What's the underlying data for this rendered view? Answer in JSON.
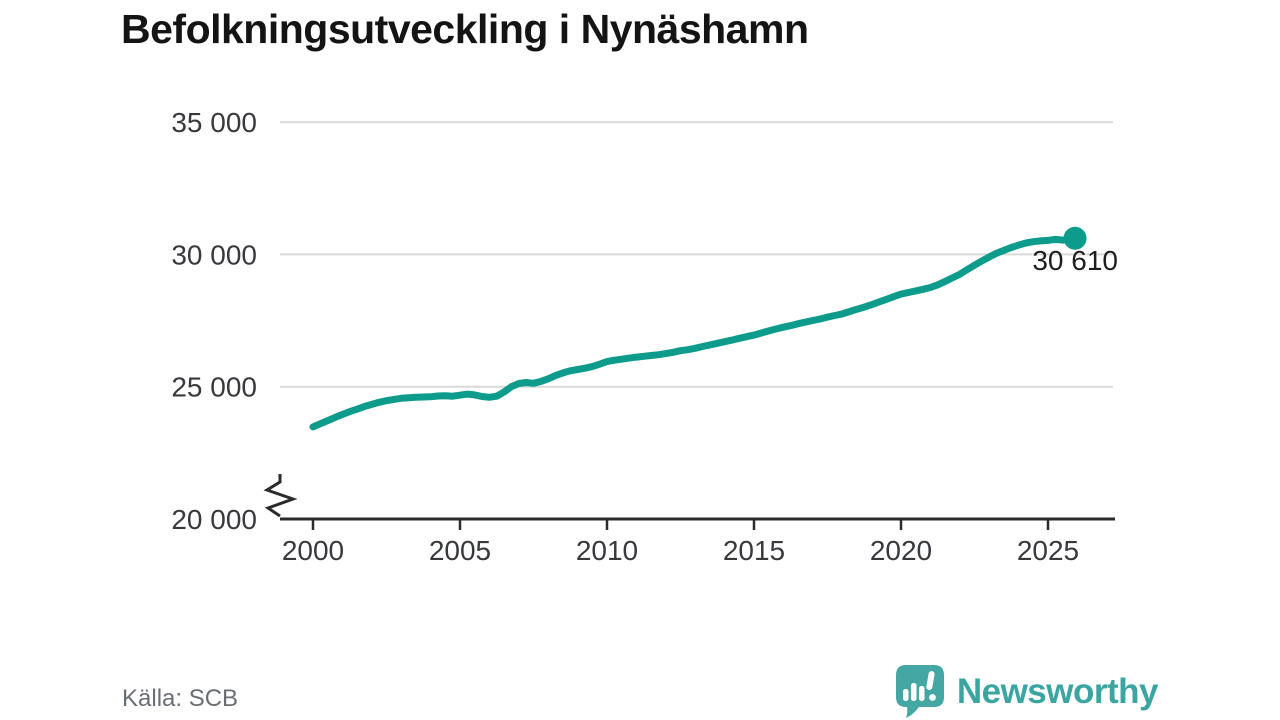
{
  "header": {
    "title": "Befolkningsutveckling i Nynäshamn"
  },
  "footer": {
    "source_label": "Källa: SCB",
    "brand_name": "Newsworthy"
  },
  "colors": {
    "line": "#0d9c8c",
    "end_dot": "#0d9c8c",
    "grid": "#d9d9d9",
    "axis": "#2b2b2b",
    "tick_text": "#37393c",
    "logo_icon": "#45a7a3",
    "logo_text": "#3aa5a1"
  },
  "chart_data": {
    "type": "line",
    "title": "Befolkningsutveckling i Nynäshamn",
    "xlabel": "",
    "ylabel": "",
    "legend": "none",
    "grid": "horizontal",
    "y_axis_break": true,
    "x_ticks": [
      2000,
      2005,
      2010,
      2015,
      2020,
      2025
    ],
    "x_tick_labels": [
      "2000",
      "2005",
      "2010",
      "2015",
      "2020",
      "2025"
    ],
    "y_ticks": [
      35000,
      30000,
      25000,
      20000
    ],
    "y_tick_labels": [
      "35 000",
      "30 000",
      "25 000",
      "20 000"
    ],
    "x_range_years": [
      2000,
      2027.3
    ],
    "y_range": [
      20000,
      35000
    ],
    "last_point": {
      "year": 2025.92,
      "value": 30610,
      "label": "30 610"
    },
    "series": [
      {
        "name": "Befolkning",
        "points": [
          [
            2000.0,
            23480
          ],
          [
            2000.25,
            23600
          ],
          [
            2000.5,
            23720
          ],
          [
            2000.75,
            23840
          ],
          [
            2001.0,
            23950
          ],
          [
            2001.25,
            24060
          ],
          [
            2001.5,
            24150
          ],
          [
            2001.75,
            24250
          ],
          [
            2002.0,
            24330
          ],
          [
            2002.25,
            24410
          ],
          [
            2002.5,
            24470
          ],
          [
            2002.75,
            24520
          ],
          [
            2003.0,
            24560
          ],
          [
            2003.25,
            24580
          ],
          [
            2003.5,
            24600
          ],
          [
            2003.75,
            24610
          ],
          [
            2004.0,
            24620
          ],
          [
            2004.25,
            24650
          ],
          [
            2004.5,
            24660
          ],
          [
            2004.75,
            24640
          ],
          [
            2005.0,
            24680
          ],
          [
            2005.25,
            24720
          ],
          [
            2005.5,
            24690
          ],
          [
            2005.75,
            24630
          ],
          [
            2006.0,
            24600
          ],
          [
            2006.25,
            24640
          ],
          [
            2006.5,
            24800
          ],
          [
            2006.75,
            25000
          ],
          [
            2007.0,
            25120
          ],
          [
            2007.25,
            25160
          ],
          [
            2007.5,
            25130
          ],
          [
            2007.75,
            25200
          ],
          [
            2008.0,
            25300
          ],
          [
            2008.25,
            25420
          ],
          [
            2008.5,
            25520
          ],
          [
            2008.75,
            25600
          ],
          [
            2009.0,
            25650
          ],
          [
            2009.25,
            25700
          ],
          [
            2009.5,
            25760
          ],
          [
            2009.75,
            25850
          ],
          [
            2010.0,
            25950
          ],
          [
            2010.25,
            26000
          ],
          [
            2010.5,
            26040
          ],
          [
            2010.75,
            26080
          ],
          [
            2011.0,
            26120
          ],
          [
            2011.25,
            26150
          ],
          [
            2011.5,
            26180
          ],
          [
            2011.75,
            26210
          ],
          [
            2012.0,
            26250
          ],
          [
            2012.25,
            26300
          ],
          [
            2012.5,
            26360
          ],
          [
            2012.75,
            26400
          ],
          [
            2013.0,
            26450
          ],
          [
            2013.25,
            26520
          ],
          [
            2013.5,
            26580
          ],
          [
            2013.75,
            26640
          ],
          [
            2014.0,
            26700
          ],
          [
            2014.25,
            26760
          ],
          [
            2014.5,
            26830
          ],
          [
            2014.75,
            26890
          ],
          [
            2015.0,
            26950
          ],
          [
            2015.25,
            27030
          ],
          [
            2015.5,
            27110
          ],
          [
            2015.75,
            27180
          ],
          [
            2016.0,
            27250
          ],
          [
            2016.25,
            27310
          ],
          [
            2016.5,
            27380
          ],
          [
            2016.75,
            27440
          ],
          [
            2017.0,
            27500
          ],
          [
            2017.25,
            27560
          ],
          [
            2017.5,
            27630
          ],
          [
            2017.75,
            27690
          ],
          [
            2018.0,
            27750
          ],
          [
            2018.25,
            27840
          ],
          [
            2018.5,
            27930
          ],
          [
            2018.75,
            28010
          ],
          [
            2019.0,
            28100
          ],
          [
            2019.25,
            28200
          ],
          [
            2019.5,
            28300
          ],
          [
            2019.75,
            28400
          ],
          [
            2020.0,
            28500
          ],
          [
            2020.25,
            28560
          ],
          [
            2020.5,
            28620
          ],
          [
            2020.75,
            28680
          ],
          [
            2021.0,
            28750
          ],
          [
            2021.25,
            28850
          ],
          [
            2021.5,
            28980
          ],
          [
            2021.75,
            29110
          ],
          [
            2022.0,
            29250
          ],
          [
            2022.25,
            29420
          ],
          [
            2022.5,
            29590
          ],
          [
            2022.75,
            29750
          ],
          [
            2023.0,
            29900
          ],
          [
            2023.25,
            30040
          ],
          [
            2023.5,
            30150
          ],
          [
            2023.75,
            30260
          ],
          [
            2024.0,
            30350
          ],
          [
            2024.25,
            30430
          ],
          [
            2024.5,
            30480
          ],
          [
            2024.75,
            30510
          ],
          [
            2025.0,
            30530
          ],
          [
            2025.25,
            30570
          ],
          [
            2025.5,
            30540
          ],
          [
            2025.75,
            30580
          ],
          [
            2025.92,
            30610
          ]
        ]
      }
    ]
  }
}
